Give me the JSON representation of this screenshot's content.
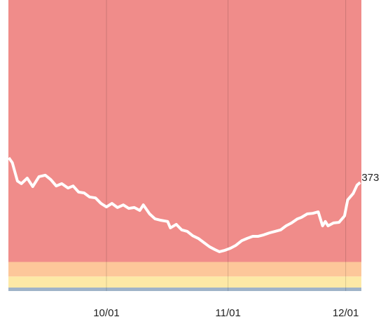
{
  "chart_data": {
    "type": "line",
    "x": [
      -24.9,
      -24.0,
      -22.7,
      -21.7,
      -20.2,
      -18.8,
      -17.2,
      -15.6,
      -14.2,
      -12.8,
      -11.4,
      -9.8,
      -8.5,
      -7.1,
      -5.7,
      -4.3,
      -2.8,
      -1.4,
      0,
      1.4,
      2.8,
      4.3,
      5.7,
      7.1,
      8.5,
      9.4,
      11.0,
      12.4,
      13.9,
      15.6,
      16.3,
      17.8,
      19.2,
      20.6,
      22.0,
      23.4,
      24.9,
      26.3,
      27.7,
      28.8,
      30.2,
      31.6,
      33.0,
      34.5,
      35.9,
      37.3,
      38.7,
      40.1,
      41.6,
      43.0,
      44.4,
      45.8,
      47.2,
      48.7,
      49.7,
      51.2,
      52.6,
      54.0,
      55.1,
      55.8,
      56.5,
      57.9,
      59.3,
      60.7,
      61.5,
      62.9,
      63.9,
      64.7
    ],
    "series": [
      {
        "color": "#ffffff",
        "values": [
          458,
          441,
          378,
          369,
          388,
          359,
          393,
          398,
          383,
          361,
          369,
          354,
          361,
          340,
          337,
          323,
          320,
          301,
          289,
          301,
          287,
          296,
          284,
          287,
          277,
          296,
          265,
          248,
          243,
          239,
          217,
          229,
          210,
          205,
          190,
          181,
          166,
          152,
          142,
          135,
          140,
          147,
          157,
          173,
          181,
          188,
          188,
          193,
          200,
          205,
          210,
          224,
          234,
          248,
          253,
          265,
          267,
          272,
          224,
          239,
          224,
          234,
          236,
          258,
          313,
          335,
          364,
          373
        ]
      }
    ],
    "xlim": [
      -25,
      65
    ],
    "ylim": [
      0,
      1000
    ],
    "xticks": [
      {
        "value": 0,
        "label": "10/01"
      },
      {
        "value": 31,
        "label": "11/01"
      },
      {
        "value": 61,
        "label": "12/01"
      }
    ],
    "grid": true,
    "bands": [
      {
        "from": 0,
        "to": 12,
        "color": "#9fb3c8"
      },
      {
        "from": 12,
        "to": 50,
        "color": "#fde9a6"
      },
      {
        "from": 50,
        "to": 100,
        "color": "#fdc79a"
      },
      {
        "from": 100,
        "to": 1000,
        "color": "#f08c8a"
      }
    ]
  }
}
